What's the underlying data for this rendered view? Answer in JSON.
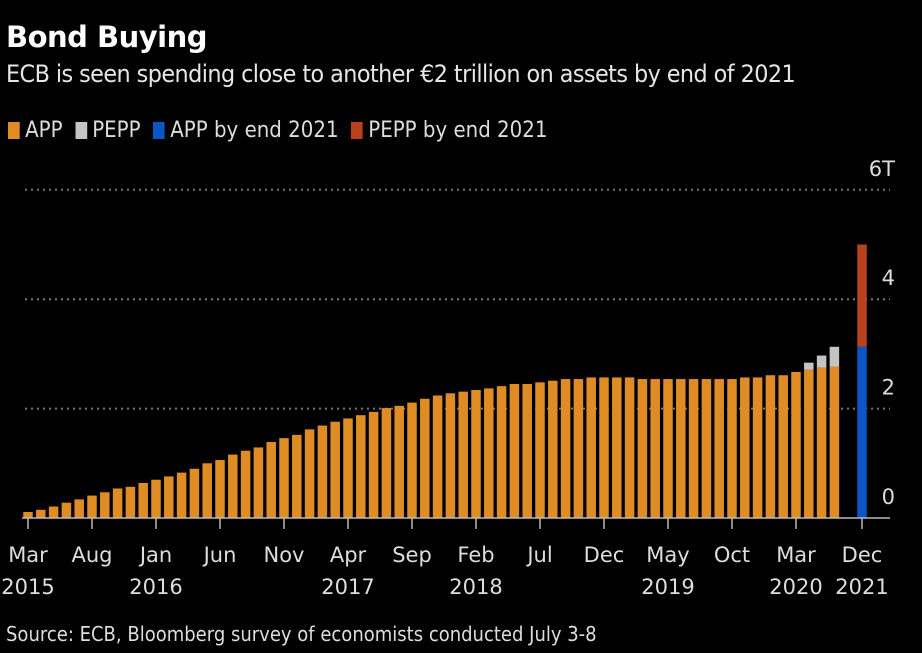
{
  "title": "Bond Buying",
  "subtitle": "ECB is seen spending close to another €2 trillion on assets by end of 2021",
  "source": "Source: ECB, Bloomberg survey of economists conducted July 3-8",
  "colors": {
    "APP": "#e08c24",
    "PEPP": "#c4c4c4",
    "APP by end 2021": "#0a56c4",
    "PEPP by end 2021": "#b8421e",
    "grid": "#777777"
  },
  "chart_data": {
    "type": "bar",
    "stacked": true,
    "title": "Bond Buying",
    "ylabel": "",
    "ylim": [
      0,
      6
    ],
    "yticks": [
      {
        "value": 0,
        "label": "0"
      },
      {
        "value": 2,
        "label": "2"
      },
      {
        "value": 4,
        "label": "4"
      },
      {
        "value": 6,
        "label": "6T"
      }
    ],
    "grid": true,
    "legend_placement": "top-left",
    "legend": [
      "APP",
      "PEPP",
      "APP by end 2021",
      "PEPP by end 2021"
    ],
    "monthly": {
      "start": "Mar 2015",
      "end": "Jun 2020",
      "APP": [
        0.11,
        0.15,
        0.21,
        0.28,
        0.34,
        0.41,
        0.47,
        0.54,
        0.57,
        0.64,
        0.7,
        0.76,
        0.83,
        0.9,
        1.0,
        1.06,
        1.16,
        1.23,
        1.29,
        1.39,
        1.46,
        1.52,
        1.62,
        1.69,
        1.76,
        1.82,
        1.88,
        1.94,
        2.01,
        2.05,
        2.11,
        2.18,
        2.24,
        2.28,
        2.31,
        2.34,
        2.37,
        2.41,
        2.45,
        2.45,
        2.48,
        2.51,
        2.54,
        2.54,
        2.57,
        2.57,
        2.57,
        2.57,
        2.54,
        2.54,
        2.54,
        2.54,
        2.54,
        2.54,
        2.54,
        2.54,
        2.57,
        2.57,
        2.61,
        2.61,
        2.67,
        2.71,
        2.75,
        2.77
      ],
      "PEPP": [
        0,
        0,
        0,
        0,
        0,
        0,
        0,
        0,
        0,
        0,
        0,
        0,
        0,
        0,
        0,
        0,
        0,
        0,
        0,
        0,
        0,
        0,
        0,
        0,
        0,
        0,
        0,
        0,
        0,
        0,
        0,
        0,
        0,
        0,
        0,
        0,
        0,
        0,
        0,
        0,
        0,
        0,
        0,
        0,
        0,
        0,
        0,
        0,
        0,
        0,
        0,
        0,
        0,
        0,
        0,
        0,
        0,
        0,
        0,
        0,
        0,
        0.13,
        0.22,
        0.36
      ]
    },
    "projection": {
      "category": "Dec 2021",
      "APP by end 2021": 3.13,
      "PEPP by end 2021": 1.87
    },
    "xticks": [
      {
        "month": "Mar",
        "year": "2015",
        "index": 0
      },
      {
        "month": "Aug",
        "year": "",
        "index": 5
      },
      {
        "month": "Jan",
        "year": "2016",
        "index": 10
      },
      {
        "month": "Jun",
        "year": "",
        "index": 15
      },
      {
        "month": "Nov",
        "year": "",
        "index": 20
      },
      {
        "month": "Apr",
        "year": "2017",
        "index": 25
      },
      {
        "month": "Sep",
        "year": "",
        "index": 30
      },
      {
        "month": "Feb",
        "year": "2018",
        "index": 35
      },
      {
        "month": "Jul",
        "year": "",
        "index": 40
      },
      {
        "month": "Dec",
        "year": "",
        "index": 45
      },
      {
        "month": "May",
        "year": "2019",
        "index": 50
      },
      {
        "month": "Oct",
        "year": "",
        "index": 55
      },
      {
        "month": "Mar",
        "year": "2020",
        "index": 60
      },
      {
        "month": "Dec",
        "year": "2021",
        "index": "projection"
      }
    ]
  }
}
